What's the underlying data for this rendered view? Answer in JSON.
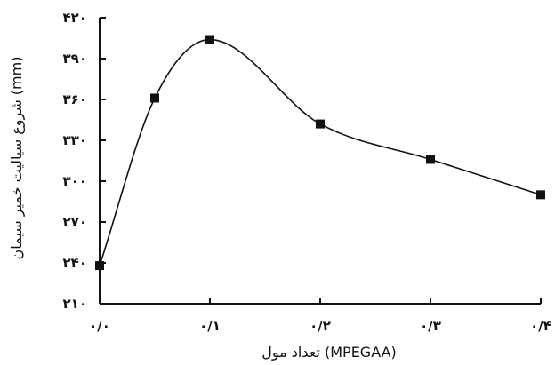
{
  "chart_data": {
    "type": "line",
    "smooth": true,
    "marker": "square",
    "xlabel": "تعداد مول (MPEGAA)",
    "ylabel": "شروع سیالیت خمیر سیمان (mm)",
    "xlim": [
      0.0,
      0.4
    ],
    "ylim": [
      210,
      420
    ],
    "x_ticks": [
      0.0,
      0.1,
      0.2,
      0.3,
      0.4
    ],
    "x_tick_labels": [
      "۰/۰",
      "۰/۱",
      "۰/۲",
      "۰/۳",
      "۰/۴"
    ],
    "y_ticks": [
      210,
      240,
      270,
      300,
      330,
      360,
      390,
      420
    ],
    "y_tick_labels": [
      "۲۱۰",
      "۲۴۰",
      "۲۷۰",
      "۳۰۰",
      "۳۳۰",
      "۳۶۰",
      "۳۹۰",
      "۴۲۰"
    ],
    "grid": false,
    "legend": "none",
    "series": [
      {
        "x": [
          0.0,
          0.05,
          0.1,
          0.2,
          0.3,
          0.4
        ],
        "y": [
          238,
          361,
          404,
          342,
          316,
          290
        ],
        "color": "#111111"
      }
    ]
  }
}
